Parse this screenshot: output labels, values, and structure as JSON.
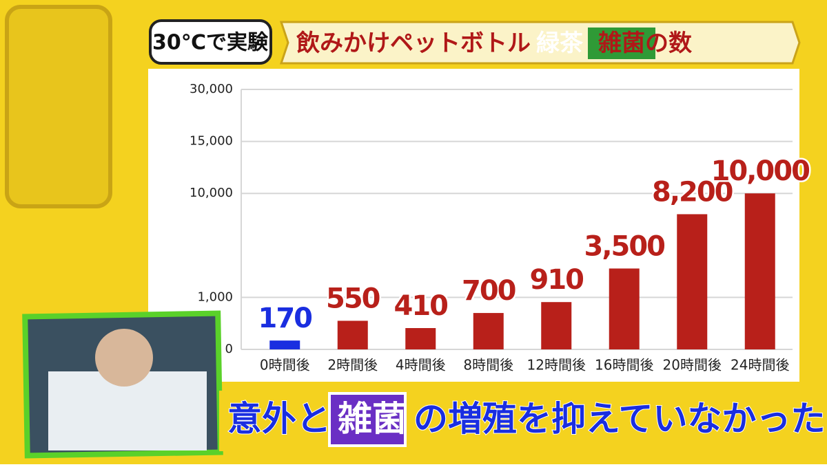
{
  "chart_data": {
    "type": "bar",
    "title_tag": "30℃で実験",
    "title_parts": [
      "飲みかけペットボトル",
      "緑茶",
      "雑菌の数"
    ],
    "caption_parts": [
      "意外と",
      "雑菌",
      "の増殖を抑えていなかった"
    ],
    "categories": [
      "0時間後",
      "2時間後",
      "4時間後",
      "8時間後",
      "12時間後",
      "16時間後",
      "20時間後",
      "24時間後"
    ],
    "values": [
      170,
      550,
      410,
      700,
      910,
      3500,
      8200,
      10000
    ],
    "value_labels": [
      "170",
      "550",
      "410",
      "700",
      "910",
      "3,500",
      "8,200",
      "10,000"
    ],
    "colors": [
      "#1a2ee0",
      "#b8201a",
      "#b8201a",
      "#b8201a",
      "#b8201a",
      "#b8201a",
      "#b8201a",
      "#b8201a"
    ],
    "ylim": [
      0,
      30000
    ],
    "yticks": [
      0,
      {
        "value": 1000,
        "label": "1,000"
      },
      {
        "value": 10000,
        "label": "10,000"
      },
      {
        "value": 15000,
        "label": "15,000"
      },
      {
        "value": 30000,
        "label": "30,000"
      }
    ],
    "grid": true
  }
}
